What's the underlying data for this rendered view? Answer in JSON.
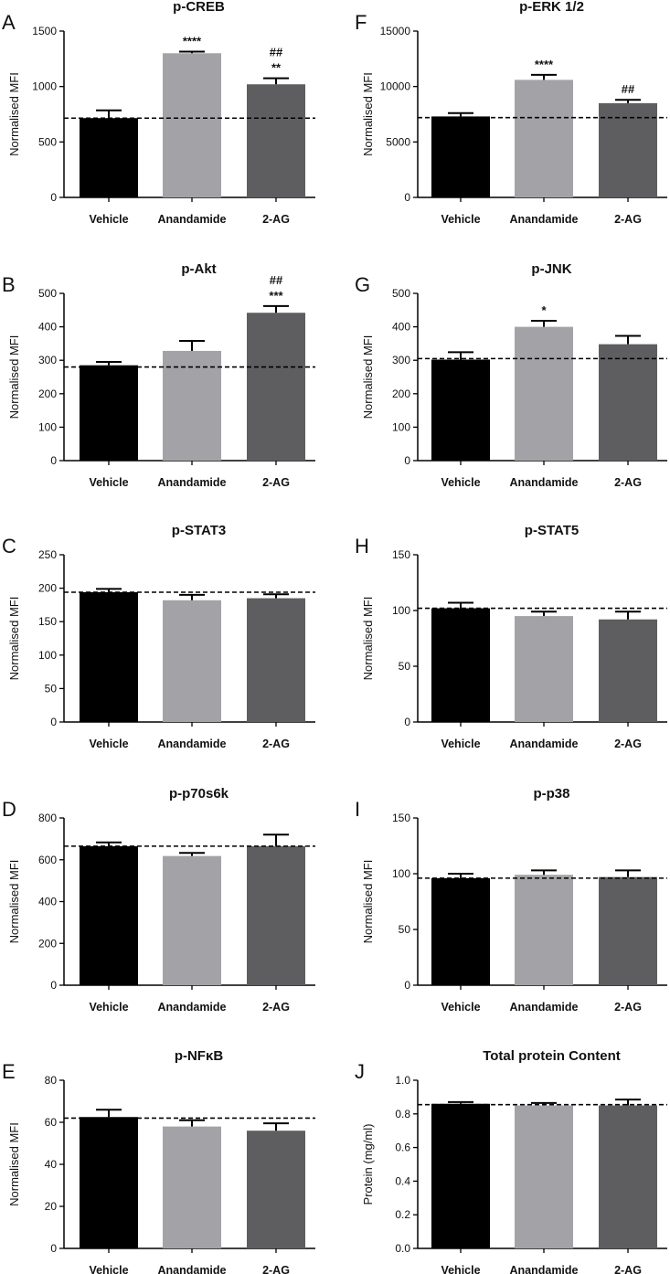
{
  "colors": {
    "vehicle": "#000000",
    "anandamide": "#a3a3a7",
    "two_ag": "#5e5e60",
    "axis": "#000000"
  },
  "chart_data": [
    {
      "letter": "A",
      "type": "bar",
      "title": "p-CREB",
      "ylabel": "Normalised MFI",
      "ylim": [
        0,
        1500
      ],
      "yticks": [
        0,
        500,
        1000,
        1500
      ],
      "categories": [
        "Vehicle",
        "Anandamide",
        "2-AG"
      ],
      "values": [
        715,
        1300,
        1020
      ],
      "errors": [
        70,
        15,
        55
      ],
      "baseline": 715,
      "annotations": [
        [
          "****"
        ],
        [
          "**",
          "##"
        ],
        []
      ],
      "annotation_map": [
        [],
        [
          "****"
        ],
        [
          "**",
          "##"
        ]
      ]
    },
    {
      "letter": "F",
      "type": "bar",
      "title": "p-ERK 1/2",
      "ylabel": "Normalised MFI",
      "ylim": [
        0,
        15000
      ],
      "yticks": [
        0,
        5000,
        10000,
        15000
      ],
      "categories": [
        "Vehicle",
        "Anandamide",
        "2-AG"
      ],
      "values": [
        7300,
        10600,
        8500
      ],
      "errors": [
        300,
        450,
        300
      ],
      "baseline": 7200,
      "annotation_map": [
        [],
        [
          "****"
        ],
        [
          "##"
        ]
      ]
    },
    {
      "letter": "B",
      "type": "bar",
      "title": "p-Akt",
      "ylabel": "Normalised MFI",
      "ylim": [
        0,
        500
      ],
      "yticks": [
        0,
        100,
        200,
        300,
        400,
        500
      ],
      "categories": [
        "Vehicle",
        "Anandamide",
        "2-AG"
      ],
      "values": [
        285,
        328,
        442
      ],
      "errors": [
        10,
        30,
        20
      ],
      "baseline": 280,
      "annotation_map": [
        [],
        [],
        [
          "***",
          "##"
        ]
      ]
    },
    {
      "letter": "G",
      "type": "bar",
      "title": "p-JNK",
      "ylabel": "Normalised MFI",
      "ylim": [
        0,
        500
      ],
      "yticks": [
        0,
        100,
        200,
        300,
        400,
        500
      ],
      "categories": [
        "Vehicle",
        "Anandamide",
        "2-AG"
      ],
      "values": [
        302,
        400,
        348
      ],
      "errors": [
        22,
        18,
        25
      ],
      "baseline": 305,
      "annotation_map": [
        [],
        [
          "*"
        ],
        []
      ]
    },
    {
      "letter": "C",
      "type": "bar",
      "title": "p-STAT3",
      "ylabel": "Normalised MFI",
      "ylim": [
        0,
        250
      ],
      "yticks": [
        0,
        50,
        100,
        150,
        200,
        250
      ],
      "categories": [
        "Vehicle",
        "Anandamide",
        "2-AG"
      ],
      "values": [
        194,
        182,
        185
      ],
      "errors": [
        5,
        8,
        6
      ],
      "baseline": 194,
      "annotation_map": [
        [],
        [],
        []
      ]
    },
    {
      "letter": "H",
      "type": "bar",
      "title": "p-STAT5",
      "ylabel": "Normalised MFI",
      "ylim": [
        0,
        150
      ],
      "yticks": [
        0,
        50,
        100,
        150
      ],
      "categories": [
        "Vehicle",
        "Anandamide",
        "2-AG"
      ],
      "values": [
        102,
        95,
        92
      ],
      "errors": [
        5,
        4,
        7
      ],
      "baseline": 102,
      "annotation_map": [
        [],
        [],
        []
      ]
    },
    {
      "letter": "D",
      "type": "bar",
      "title": "p-p70s6k",
      "ylabel": "Normalised MFI",
      "ylim": [
        0,
        800
      ],
      "yticks": [
        0,
        200,
        400,
        600,
        800
      ],
      "categories": [
        "Vehicle",
        "Anandamide",
        "2-AG"
      ],
      "values": [
        665,
        618,
        665
      ],
      "errors": [
        18,
        15,
        55
      ],
      "baseline": 665,
      "annotation_map": [
        [],
        [],
        []
      ]
    },
    {
      "letter": "I",
      "type": "bar",
      "title": "p-p38",
      "ylabel": "Normalised MFI",
      "ylim": [
        0,
        150
      ],
      "yticks": [
        0,
        50,
        100,
        150
      ],
      "categories": [
        "Vehicle",
        "Anandamide",
        "2-AG"
      ],
      "values": [
        96,
        99,
        97
      ],
      "errors": [
        4,
        4,
        6
      ],
      "baseline": 96,
      "annotation_map": [
        [],
        [],
        []
      ]
    },
    {
      "letter": "E",
      "type": "bar",
      "title": "p-NFκB",
      "ylabel": "Normalised MFI",
      "ylim": [
        0,
        80
      ],
      "yticks": [
        0,
        20,
        40,
        60,
        80
      ],
      "categories": [
        "Vehicle",
        "Anandamide",
        "2-AG"
      ],
      "values": [
        62.5,
        58,
        56
      ],
      "errors": [
        3.5,
        3,
        3.5
      ],
      "baseline": 62,
      "annotation_map": [
        [],
        [],
        []
      ]
    },
    {
      "letter": "J",
      "type": "bar",
      "title": "Total protein Content",
      "ylabel": "Protein (mg/ml)",
      "ylim": [
        0,
        1.0
      ],
      "yticks": [
        0.0,
        0.2,
        0.4,
        0.6,
        0.8,
        1.0
      ],
      "ytick_labels": [
        "0.0",
        "0.2",
        "0.4",
        "0.6",
        "0.8",
        "1.0"
      ],
      "categories": [
        "Vehicle",
        "Anandamide",
        "2-AG"
      ],
      "values": [
        0.86,
        0.85,
        0.85
      ],
      "errors": [
        0.01,
        0.015,
        0.035
      ],
      "baseline": 0.855,
      "annotation_map": [
        [],
        [],
        []
      ]
    }
  ]
}
